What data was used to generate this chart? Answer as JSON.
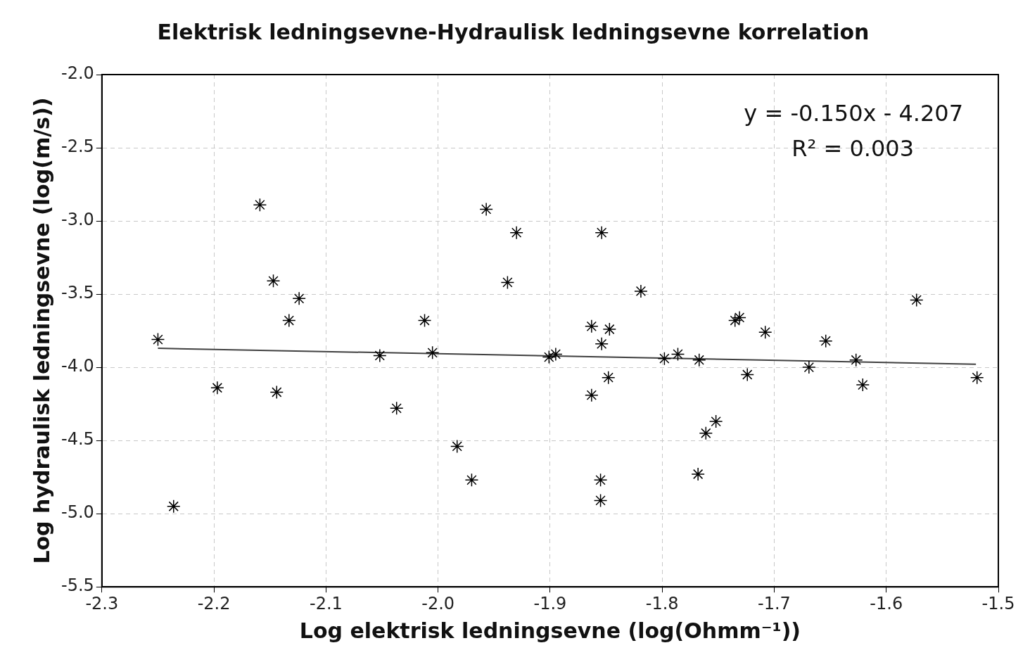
{
  "chart_data": {
    "type": "scatter",
    "title": "Elektrisk ledningsevne-Hydraulisk ledningsevne korrelation",
    "xlabel": "Log elektrisk ledningsevne (log(Ohmm⁻¹))",
    "ylabel": "Log hydraulisk ledningsevne (log(m/s))",
    "annotations": [
      "y = -0.150x - 4.207",
      "R² = 0.003"
    ],
    "xlim": [
      -2.3,
      -1.5
    ],
    "xticks": [
      -2.3,
      -2.2,
      -2.1,
      {
        "value": -2,
        "label": "-2.0"
      },
      -1.9,
      -1.8,
      -1.7,
      -1.6,
      -1.5
    ],
    "ylim": [
      -5.5,
      -2
    ],
    "yticks": [
      -5.5,
      {
        "value": -5,
        "label": "-5.0"
      },
      -4.5,
      {
        "value": -4,
        "label": "-4.0"
      },
      -3.5,
      {
        "value": -3,
        "label": "-3.0"
      },
      -2.5,
      {
        "value": -2,
        "label": "-2.0"
      }
    ],
    "grid": true,
    "legend": false,
    "series": [
      {
        "color": "#000000",
        "marker": "cross",
        "x": [
          -2.25,
          -2.236,
          -2.197,
          -2.159,
          -2.147,
          -2.144,
          -2.133,
          -2.124,
          -2.052,
          -2.037,
          -2.012,
          -2.005,
          -1.983,
          -1.97,
          -1.957,
          -1.93,
          -1.938,
          -1.901,
          -1.895,
          -1.863,
          -1.863,
          -1.854,
          -1.854,
          -1.847,
          -1.848,
          -1.855,
          -1.855,
          -1.819,
          -1.798,
          -1.786,
          -1.767,
          -1.768,
          -1.761,
          -1.752,
          -1.735,
          -1.731,
          -1.724,
          -1.708,
          -1.669,
          -1.654,
          -1.627,
          -1.621,
          -1.573,
          -1.519
        ],
        "values": [
          -3.81,
          -4.95,
          -4.14,
          -2.89,
          -3.41,
          -4.17,
          -3.68,
          -3.53,
          -3.92,
          -4.28,
          -3.68,
          -3.9,
          -4.54,
          -4.77,
          -2.92,
          -3.08,
          -3.42,
          -3.93,
          -3.91,
          -3.72,
          -4.19,
          -3.08,
          -3.84,
          -3.74,
          -4.07,
          -4.77,
          -4.91,
          -3.48,
          -3.94,
          -3.91,
          -3.95,
          -4.73,
          -4.45,
          -4.37,
          -3.68,
          -3.66,
          -4.05,
          -3.76,
          -4.0,
          -3.82,
          -3.95,
          -4.12,
          -3.54,
          -4.07
        ]
      },
      {
        "type": "line",
        "color": "#404040",
        "marker": "none",
        "line_style": "solid",
        "x": [
          -2.25,
          -1.52
        ],
        "values": [
          -3.87,
          -3.979
        ]
      }
    ]
  }
}
